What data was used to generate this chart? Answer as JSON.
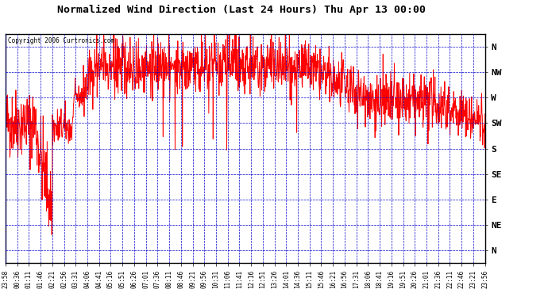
{
  "title": "Normalized Wind Direction (Last 24 Hours) Thu Apr 13 00:00",
  "copyright": "Copyright 2006 Curtronics.com",
  "background_color": "#ffffff",
  "plot_bg_color": "#ffffff",
  "grid_color": "#0000cc",
  "line_color": "#ff0000",
  "border_color": "#000000",
  "ytick_labels": [
    "N",
    "NW",
    "W",
    "SW",
    "S",
    "SE",
    "E",
    "NE",
    "N"
  ],
  "ytick_values": [
    9,
    8,
    7,
    6,
    5,
    4,
    3,
    2,
    1
  ],
  "ylim": [
    0.5,
    9.5
  ],
  "xtick_labels": [
    "23:58",
    "00:36",
    "01:11",
    "01:46",
    "02:21",
    "02:56",
    "03:31",
    "04:06",
    "04:41",
    "05:16",
    "05:51",
    "06:26",
    "07:01",
    "07:36",
    "08:11",
    "08:46",
    "09:21",
    "09:56",
    "10:31",
    "11:06",
    "11:41",
    "12:16",
    "12:51",
    "13:26",
    "14:01",
    "14:36",
    "15:11",
    "15:46",
    "16:21",
    "16:56",
    "17:31",
    "18:06",
    "18:41",
    "19:16",
    "19:51",
    "20:26",
    "21:01",
    "21:36",
    "22:11",
    "22:46",
    "23:21",
    "23:56"
  ],
  "num_xticks": 42
}
